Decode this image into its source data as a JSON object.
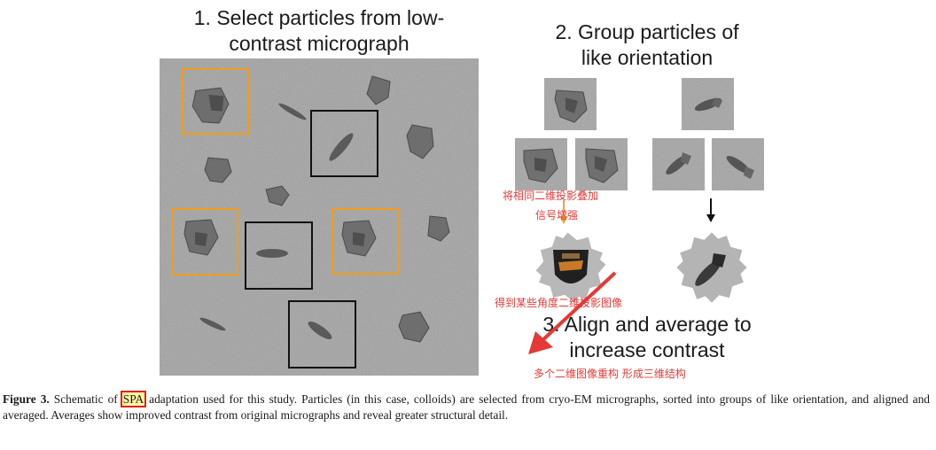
{
  "steps": {
    "step1_line1": "1. Select particles from low-",
    "step1_line2": "contrast micrograph",
    "step2_line1": "2. Group particles of",
    "step2_line2": "like orientation",
    "step3_line1": "3. Align and average to",
    "step3_line2": "increase contrast"
  },
  "annotations": {
    "stack_line1": "将相同二维投影叠加",
    "stack_line2": "信号增强",
    "get_projection": "得到某些角度二维投影图像",
    "reconstruct": "多个二维图像重构 形成三维结构"
  },
  "caption": {
    "label": "Figure 3.",
    "before_spa": " Schematic of ",
    "spa": "SPA",
    "after_spa": " adaptation used for this study. Particles (in this case, colloids) are selected from cryo-EM micrographs, sorted into groups of like orientation, and aligned and averaged. Averages show improved contrast from original micrographs and reveal greater structural detail."
  },
  "colors": {
    "orange_box": "#f39c1a",
    "black_box": "#111111",
    "annotation_red": "#e53935",
    "highlight_yellow": "#fff6a0"
  }
}
